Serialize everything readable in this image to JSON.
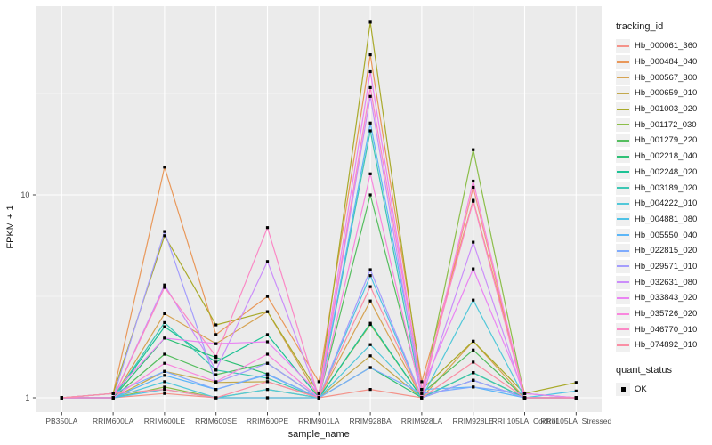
{
  "figure": {
    "y_axis": {
      "label": "FPKM + 1",
      "ticks": [
        {
          "value": 1,
          "label": "1"
        },
        {
          "value": 10,
          "label": "10"
        }
      ]
    },
    "x_axis": {
      "label": "sample_name"
    },
    "legend": {
      "tracking_title": "tracking_id",
      "quant_title": "quant_status",
      "quant_label": "OK"
    }
  },
  "chart_data": {
    "type": "line",
    "title": "",
    "xlabel": "sample_name",
    "ylabel": "FPKM + 1",
    "y_scale": "log10",
    "ylim": [
      1,
      85
    ],
    "yticks": [
      1,
      10
    ],
    "grid": true,
    "legend_position": "right",
    "point_shape": "filled-black-square",
    "point_legend": {
      "title": "quant_status",
      "items": [
        "OK"
      ]
    },
    "categories": [
      "PB350LA",
      "RRIM600LA",
      "RRIM600LE",
      "RRIM600SE",
      "RRIM600PE",
      "RRIM901LA",
      "RRIM928BA",
      "RRIM928LA",
      "RRIM928LE",
      "RRII105LA_Control",
      "RRII105LA_Stressed"
    ],
    "series": [
      {
        "name": "Hb_000061_360",
        "color": "#F49289",
        "values": [
          1.0,
          1.0,
          1.05,
          1.0,
          1.0,
          1.0,
          1.1,
          1.0,
          10.9,
          1.0,
          1.0
        ]
      },
      {
        "name": "Hb_000484_040",
        "color": "#E9985A",
        "values": [
          1.0,
          1.05,
          13.7,
          2.05,
          3.16,
          1.2,
          49,
          1.2,
          9.4,
          1.05,
          1.0
        ]
      },
      {
        "name": "Hb_000567_300",
        "color": "#D6A353",
        "values": [
          1.0,
          1.0,
          2.6,
          1.85,
          2.66,
          1.0,
          3.0,
          1.0,
          1.9,
          1.0,
          1.0
        ]
      },
      {
        "name": "Hb_000659_010",
        "color": "#C3A94E",
        "values": [
          1.0,
          1.0,
          1.35,
          1.19,
          1.2,
          1.0,
          1.61,
          1.0,
          1.33,
          1.0,
          1.0
        ]
      },
      {
        "name": "Hb_001003_020",
        "color": "#A9AA2A",
        "values": [
          1.0,
          1.05,
          6.3,
          2.29,
          2.66,
          1.05,
          71,
          1.1,
          1.9,
          1.05,
          1.19
        ]
      },
      {
        "name": "Hb_001172_030",
        "color": "#8CBE4A",
        "values": [
          1.0,
          1.0,
          1.13,
          1.0,
          1.1,
          1.0,
          2.3,
          1.0,
          16.7,
          1.0,
          1.0
        ]
      },
      {
        "name": "Hb_001279_220",
        "color": "#55BE5F",
        "values": [
          1.0,
          1.0,
          1.64,
          1.3,
          1.48,
          1.0,
          10.0,
          1.05,
          1.72,
          1.0,
          1.0
        ]
      },
      {
        "name": "Hb_002218_040",
        "color": "#2FC076",
        "values": [
          1.0,
          1.0,
          1.97,
          1.58,
          1.31,
          1.0,
          1.41,
          1.0,
          1.33,
          1.0,
          1.0
        ]
      },
      {
        "name": "Hb_002248_020",
        "color": "#1DC295",
        "values": [
          1.0,
          1.0,
          2.24,
          1.5,
          2.05,
          1.0,
          2.33,
          1.0,
          1.22,
          1.0,
          1.0
        ]
      },
      {
        "name": "Hb_003189_020",
        "color": "#3EC7B4",
        "values": [
          1.0,
          1.0,
          2.35,
          1.37,
          1.25,
          1.0,
          20.7,
          1.0,
          1.33,
          1.0,
          1.0
        ]
      },
      {
        "name": "Hb_004222_010",
        "color": "#52C8D9",
        "values": [
          1.0,
          1.0,
          1.2,
          1.0,
          1.1,
          1.0,
          1.83,
          1.0,
          3.03,
          1.0,
          1.0
        ]
      },
      {
        "name": "Hb_004881_080",
        "color": "#4FC2E6",
        "values": [
          1.0,
          1.0,
          1.1,
          1.0,
          1.0,
          1.0,
          4.0,
          1.0,
          1.22,
          1.0,
          1.08
        ]
      },
      {
        "name": "Hb_005550_040",
        "color": "#5CB6F7",
        "values": [
          1.0,
          1.0,
          1.29,
          1.1,
          1.3,
          1.0,
          22.6,
          1.1,
          1.13,
          1.0,
          1.0
        ]
      },
      {
        "name": "Hb_022815_020",
        "color": "#7FABFD",
        "values": [
          1.0,
          1.05,
          1.35,
          1.1,
          1.31,
          1.0,
          1.41,
          1.05,
          1.13,
          1.05,
          1.0
        ]
      },
      {
        "name": "Hb_029571_010",
        "color": "#A49DFC",
        "values": [
          1.0,
          1.0,
          6.6,
          1.19,
          1.48,
          1.0,
          4.28,
          1.0,
          1.22,
          1.0,
          1.0
        ]
      },
      {
        "name": "Hb_032631_080",
        "color": "#CB8EFA",
        "values": [
          1.0,
          1.0,
          3.6,
          1.37,
          4.7,
          1.0,
          30.6,
          1.0,
          5.85,
          1.0,
          1.0
        ]
      },
      {
        "name": "Hb_033843_020",
        "color": "#EA85F3",
        "values": [
          1.0,
          1.05,
          1.97,
          1.85,
          1.89,
          1.05,
          40.5,
          1.1,
          4.32,
          1.05,
          1.0
        ]
      },
      {
        "name": "Hb_035726_020",
        "color": "#F987DE",
        "values": [
          1.0,
          1.0,
          1.48,
          1.2,
          1.64,
          1.0,
          12.7,
          1.0,
          11.7,
          1.0,
          1.0
        ]
      },
      {
        "name": "Hb_046770_010",
        "color": "#FB88C5",
        "values": [
          1.0,
          1.0,
          3.5,
          1.6,
          6.9,
          1.0,
          33.8,
          1.1,
          9.3,
          1.0,
          1.0
        ]
      },
      {
        "name": "Hb_074892_010",
        "color": "#FA8FA5",
        "values": [
          1.0,
          1.05,
          1.1,
          1.0,
          1.2,
          1.0,
          3.53,
          1.0,
          1.5,
          1.0,
          1.0
        ]
      }
    ],
    "panel_background": "#EBEBEB",
    "gridline_color": "#FFFFFF",
    "point_color": "#000000",
    "axis_text_color": "#4D4D4D"
  }
}
